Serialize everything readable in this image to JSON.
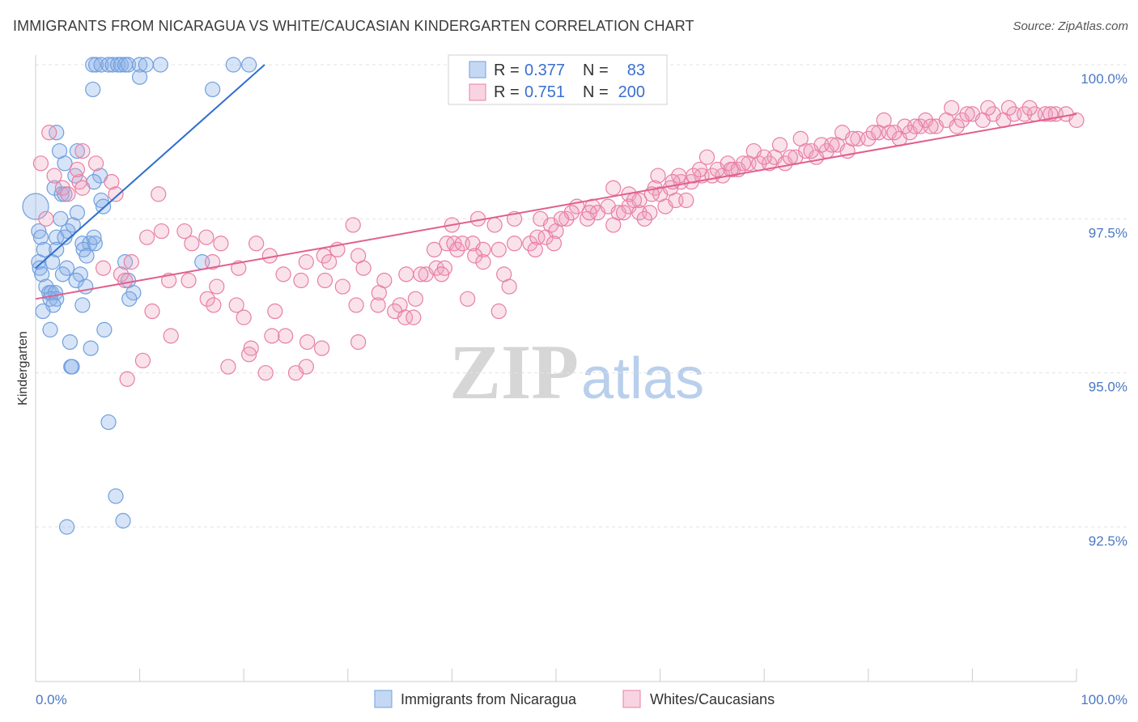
{
  "title": "IMMIGRANTS FROM NICARAGUA VS WHITE/CAUCASIAN KINDERGARTEN CORRELATION CHART",
  "source": "Source: ZipAtlas.com",
  "watermark": {
    "zip": "ZIP",
    "atlas": "atlas"
  },
  "colors": {
    "blue": "#6f9fde",
    "blue_fill": "rgba(140,178,232,0.35)",
    "blue_line": "#2f6fd0",
    "pink": "#e87fa3",
    "pink_fill": "rgba(240,160,190,0.30)",
    "pink_line": "#e0608d",
    "tick_text": "#4a78c4",
    "value_text": "#3a6fd0"
  },
  "legend": {
    "row1": {
      "r_label": "R =",
      "r_value": "0.377",
      "n_label": "N =",
      "n_value": "83"
    },
    "row2": {
      "r_label": "R =",
      "r_value": "0.751",
      "n_label": "N =",
      "n_value": "200"
    }
  },
  "chart_data": {
    "type": "scatter",
    "title": "IMMIGRANTS FROM NICARAGUA VS WHITE/CAUCASIAN KINDERGARTEN CORRELATION CHART",
    "xlabel": "",
    "ylabel": "Kindergarten",
    "xlim": [
      0,
      100
    ],
    "ylim": [
      90.0,
      100.4
    ],
    "x_tick_labels": [
      "0.0%",
      "100.0%"
    ],
    "y_ticks": [
      92.5,
      95.0,
      97.5,
      100.0
    ],
    "y_tick_labels": [
      "92.5%",
      "95.0%",
      "97.5%",
      "100.0%"
    ],
    "grid": true,
    "legend_position": "bottom",
    "series": [
      {
        "name": "Immigrants from Nicaragua",
        "color": "#6f9fde",
        "r": 0.377,
        "n": 83,
        "trend": {
          "x": [
            0.0,
            22.0
          ],
          "y": [
            96.7,
            100.0
          ]
        },
        "points": [
          [
            5.5,
            100.0
          ],
          [
            5.8,
            100.0
          ],
          [
            6.3,
            100.0
          ],
          [
            7.0,
            100.0
          ],
          [
            7.4,
            100.0
          ],
          [
            7.9,
            100.0
          ],
          [
            8.2,
            100.0
          ],
          [
            8.6,
            100.0
          ],
          [
            8.9,
            100.0
          ],
          [
            10.0,
            100.0
          ],
          [
            10.6,
            100.0
          ],
          [
            12.0,
            100.0
          ],
          [
            19.0,
            100.0
          ],
          [
            20.5,
            100.0
          ],
          [
            5.5,
            99.6
          ],
          [
            10.0,
            99.8
          ],
          [
            17.0,
            99.6
          ],
          [
            2.0,
            98.9
          ],
          [
            2.3,
            98.6
          ],
          [
            4.0,
            98.6
          ],
          [
            2.8,
            98.4
          ],
          [
            3.8,
            98.2
          ],
          [
            6.2,
            98.2
          ],
          [
            5.6,
            98.1
          ],
          [
            1.8,
            98.0
          ],
          [
            2.5,
            97.9
          ],
          [
            2.8,
            97.9
          ],
          [
            6.3,
            97.8
          ],
          [
            6.5,
            97.7
          ],
          [
            0.0,
            97.7
          ],
          [
            2.4,
            97.5
          ],
          [
            3.6,
            97.4
          ],
          [
            3.1,
            97.3
          ],
          [
            0.3,
            97.3
          ],
          [
            4.0,
            97.6
          ],
          [
            2.0,
            97.2
          ],
          [
            2.8,
            97.2
          ],
          [
            4.5,
            97.1
          ],
          [
            5.2,
            97.1
          ],
          [
            5.7,
            97.1
          ],
          [
            5.6,
            97.2
          ],
          [
            0.5,
            97.2
          ],
          [
            0.8,
            97.0
          ],
          [
            2.0,
            97.0
          ],
          [
            4.6,
            97.0
          ],
          [
            4.9,
            96.9
          ],
          [
            0.3,
            96.8
          ],
          [
            1.6,
            96.8
          ],
          [
            3.0,
            96.7
          ],
          [
            8.6,
            96.8
          ],
          [
            16.0,
            96.8
          ],
          [
            0.4,
            96.7
          ],
          [
            0.6,
            96.6
          ],
          [
            2.6,
            96.6
          ],
          [
            4.3,
            96.6
          ],
          [
            3.9,
            96.5
          ],
          [
            8.9,
            96.5
          ],
          [
            4.8,
            96.4
          ],
          [
            1.0,
            96.4
          ],
          [
            1.3,
            96.3
          ],
          [
            1.5,
            96.3
          ],
          [
            1.9,
            96.3
          ],
          [
            9.4,
            96.3
          ],
          [
            9.0,
            96.2
          ],
          [
            1.4,
            96.2
          ],
          [
            2.0,
            96.2
          ],
          [
            1.7,
            96.1
          ],
          [
            4.5,
            96.1
          ],
          [
            0.7,
            96.0
          ],
          [
            1.4,
            95.7
          ],
          [
            6.6,
            95.7
          ],
          [
            3.3,
            95.5
          ],
          [
            5.3,
            95.4
          ],
          [
            3.4,
            95.1
          ],
          [
            3.5,
            95.1
          ],
          [
            7.0,
            94.2
          ],
          [
            7.7,
            93.0
          ],
          [
            8.4,
            92.6
          ],
          [
            3.0,
            92.5
          ]
        ]
      },
      {
        "name": "Whites/Caucasians",
        "color": "#e87fa3",
        "r": 0.751,
        "n": 200,
        "trend": {
          "x": [
            0.0,
            100.0
          ],
          "y": [
            96.2,
            99.2
          ]
        },
        "points": [
          [
            0.5,
            98.4
          ],
          [
            1.3,
            98.9
          ],
          [
            1.8,
            98.2
          ],
          [
            4.2,
            98.1
          ],
          [
            4.5,
            98.6
          ],
          [
            5.8,
            98.4
          ],
          [
            2.6,
            98.0
          ],
          [
            7.3,
            98.1
          ],
          [
            3.1,
            97.9
          ],
          [
            7.7,
            97.9
          ],
          [
            4.5,
            98.0
          ],
          [
            1.0,
            97.5
          ],
          [
            11.8,
            97.9
          ],
          [
            4.0,
            98.3
          ],
          [
            10.7,
            97.2
          ],
          [
            12.1,
            97.3
          ],
          [
            14.3,
            97.3
          ],
          [
            16.4,
            97.2
          ],
          [
            17.8,
            97.1
          ],
          [
            21.2,
            97.1
          ],
          [
            15.0,
            97.1
          ],
          [
            9.2,
            96.8
          ],
          [
            8.2,
            96.6
          ],
          [
            6.5,
            96.7
          ],
          [
            17.0,
            96.8
          ],
          [
            22.5,
            96.9
          ],
          [
            23.8,
            96.6
          ],
          [
            25.5,
            96.5
          ],
          [
            26.0,
            96.8
          ],
          [
            27.7,
            96.9
          ],
          [
            28.2,
            96.8
          ],
          [
            29.0,
            97.0
          ],
          [
            31.0,
            96.9
          ],
          [
            30.5,
            97.4
          ],
          [
            8.6,
            96.5
          ],
          [
            12.8,
            96.5
          ],
          [
            14.7,
            96.5
          ],
          [
            17.4,
            96.4
          ],
          [
            19.5,
            96.7
          ],
          [
            27.8,
            96.5
          ],
          [
            29.5,
            96.4
          ],
          [
            31.5,
            96.7
          ],
          [
            33.5,
            96.5
          ],
          [
            35.6,
            96.6
          ],
          [
            37.5,
            96.6
          ],
          [
            38.5,
            96.7
          ],
          [
            39.3,
            96.7
          ],
          [
            39.0,
            96.6
          ],
          [
            16.5,
            96.2
          ],
          [
            17.1,
            96.1
          ],
          [
            19.3,
            96.1
          ],
          [
            20.0,
            95.9
          ],
          [
            23.0,
            96.0
          ],
          [
            33.0,
            96.3
          ],
          [
            11.2,
            96.0
          ],
          [
            30.8,
            96.1
          ],
          [
            32.9,
            96.1
          ],
          [
            35.0,
            96.1
          ],
          [
            34.5,
            96.0
          ],
          [
            35.5,
            95.9
          ],
          [
            36.3,
            95.9
          ],
          [
            13.0,
            95.6
          ],
          [
            24.0,
            95.6
          ],
          [
            20.7,
            95.4
          ],
          [
            22.7,
            95.6
          ],
          [
            26.1,
            95.5
          ],
          [
            27.5,
            95.4
          ],
          [
            31.0,
            95.5
          ],
          [
            20.5,
            95.3
          ],
          [
            10.3,
            95.2
          ],
          [
            18.5,
            95.1
          ],
          [
            22.1,
            95.0
          ],
          [
            25.0,
            95.0
          ],
          [
            26.0,
            95.1
          ],
          [
            8.8,
            94.9
          ],
          [
            38.3,
            97.0
          ],
          [
            39.5,
            97.1
          ],
          [
            40.2,
            97.1
          ],
          [
            40.5,
            97.0
          ],
          [
            41.0,
            97.1
          ],
          [
            42.0,
            97.1
          ],
          [
            43.0,
            97.0
          ],
          [
            44.5,
            97.0
          ],
          [
            46.0,
            97.1
          ],
          [
            47.5,
            97.1
          ],
          [
            48.2,
            97.2
          ],
          [
            49.0,
            97.2
          ],
          [
            40.0,
            97.4
          ],
          [
            42.5,
            97.5
          ],
          [
            44.1,
            97.4
          ],
          [
            46.0,
            97.5
          ],
          [
            48.5,
            97.5
          ],
          [
            49.5,
            97.4
          ],
          [
            50.0,
            97.3
          ],
          [
            42.2,
            96.9
          ],
          [
            45.0,
            96.6
          ],
          [
            48.0,
            97.0
          ],
          [
            49.8,
            97.1
          ],
          [
            41.5,
            96.2
          ],
          [
            44.5,
            96.0
          ],
          [
            51.0,
            97.5
          ],
          [
            52.0,
            97.7
          ],
          [
            53.5,
            97.7
          ],
          [
            54.0,
            97.6
          ],
          [
            55.0,
            97.7
          ],
          [
            56.0,
            97.6
          ],
          [
            57.0,
            97.7
          ],
          [
            58.0,
            97.6
          ],
          [
            59.0,
            97.6
          ],
          [
            60.5,
            97.7
          ],
          [
            61.5,
            97.8
          ],
          [
            62.5,
            97.8
          ],
          [
            53.0,
            97.5
          ],
          [
            55.5,
            97.4
          ],
          [
            56.5,
            97.6
          ],
          [
            58.5,
            97.5
          ],
          [
            55.5,
            98.0
          ],
          [
            57.0,
            97.9
          ],
          [
            58.0,
            97.8
          ],
          [
            59.5,
            98.0
          ],
          [
            60.0,
            97.9
          ],
          [
            61.0,
            98.0
          ],
          [
            62.0,
            98.1
          ],
          [
            63.0,
            98.1
          ],
          [
            64.0,
            98.2
          ],
          [
            65.0,
            98.2
          ],
          [
            66.0,
            98.2
          ],
          [
            59.8,
            98.2
          ],
          [
            61.8,
            98.2
          ],
          [
            63.8,
            98.3
          ],
          [
            64.5,
            98.5
          ],
          [
            65.5,
            98.3
          ],
          [
            66.5,
            98.4
          ],
          [
            67.0,
            98.3
          ],
          [
            67.5,
            98.3
          ],
          [
            68.5,
            98.4
          ],
          [
            69.5,
            98.4
          ],
          [
            70.5,
            98.4
          ],
          [
            71.0,
            98.5
          ],
          [
            72.0,
            98.4
          ],
          [
            73.0,
            98.5
          ],
          [
            74.0,
            98.6
          ],
          [
            75.0,
            98.5
          ],
          [
            76.0,
            98.6
          ],
          [
            77.0,
            98.7
          ],
          [
            78.0,
            98.6
          ],
          [
            69.0,
            98.6
          ],
          [
            71.5,
            98.7
          ],
          [
            73.5,
            98.8
          ],
          [
            75.5,
            98.7
          ],
          [
            77.5,
            98.9
          ],
          [
            79.0,
            98.8
          ],
          [
            80.0,
            98.8
          ],
          [
            81.0,
            98.9
          ],
          [
            82.0,
            98.9
          ],
          [
            83.0,
            98.8
          ],
          [
            84.0,
            98.9
          ],
          [
            85.0,
            99.0
          ],
          [
            81.5,
            99.1
          ],
          [
            83.5,
            99.0
          ],
          [
            85.5,
            99.1
          ],
          [
            86.5,
            99.0
          ],
          [
            87.5,
            99.1
          ],
          [
            88.5,
            99.0
          ],
          [
            89.0,
            99.1
          ],
          [
            90.0,
            99.2
          ],
          [
            91.0,
            99.1
          ],
          [
            92.0,
            99.2
          ],
          [
            93.0,
            99.1
          ],
          [
            94.0,
            99.2
          ],
          [
            95.0,
            99.2
          ],
          [
            96.0,
            99.2
          ],
          [
            97.0,
            99.2
          ],
          [
            98.0,
            99.2
          ],
          [
            99.0,
            99.2
          ],
          [
            100.0,
            99.1
          ],
          [
            88.0,
            99.3
          ],
          [
            89.5,
            99.2
          ],
          [
            91.5,
            99.3
          ],
          [
            93.5,
            99.3
          ],
          [
            95.5,
            99.3
          ],
          [
            97.5,
            99.2
          ],
          [
            86.0,
            99.0
          ],
          [
            84.5,
            99.0
          ],
          [
            82.5,
            98.9
          ],
          [
            80.5,
            98.9
          ],
          [
            78.5,
            98.8
          ],
          [
            76.5,
            98.7
          ],
          [
            74.5,
            98.6
          ],
          [
            72.5,
            98.5
          ],
          [
            70.0,
            98.5
          ],
          [
            68.0,
            98.4
          ],
          [
            66.8,
            98.3
          ],
          [
            63.2,
            98.2
          ],
          [
            61.2,
            98.1
          ],
          [
            59.2,
            97.9
          ],
          [
            57.5,
            97.8
          ],
          [
            53.2,
            97.6
          ],
          [
            51.5,
            97.6
          ],
          [
            50.5,
            97.5
          ],
          [
            37.0,
            96.6
          ],
          [
            36.5,
            96.2
          ],
          [
            43.0,
            96.8
          ],
          [
            45.5,
            96.4
          ]
        ]
      }
    ]
  }
}
